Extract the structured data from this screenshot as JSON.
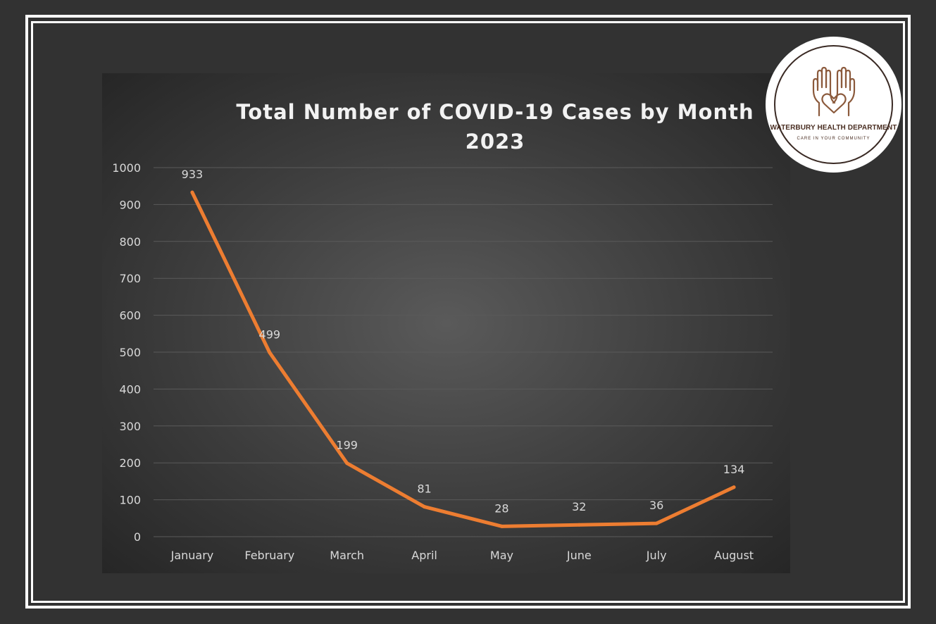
{
  "colors": {
    "background": "#323232",
    "frame": "#ffffff",
    "line": "#ed7d31",
    "text": "#d9d9d9",
    "grid": "#5a5a5a",
    "logo_brown": "#8b5a3c"
  },
  "logo": {
    "name": "WATERBURY HEALTH DEPARTMENT",
    "tagline": "CARE IN YOUR COMMUNITY",
    "icon": "hands-heart-icon"
  },
  "chart_data": {
    "type": "line",
    "title": "Total Number of COVID-19 Cases by Month",
    "subtitle": "2023",
    "xlabel": "",
    "ylabel": "",
    "categories": [
      "January",
      "February",
      "March",
      "April",
      "May",
      "June",
      "July",
      "August"
    ],
    "series": [
      {
        "values": [
          933,
          499,
          199,
          81,
          28,
          32,
          36,
          134
        ]
      }
    ],
    "ylim": [
      0,
      1000
    ],
    "yticks": [
      0,
      100,
      200,
      300,
      400,
      500,
      600,
      700,
      800,
      900,
      1000
    ],
    "grid": true,
    "legend": "none",
    "data_labels": true
  }
}
